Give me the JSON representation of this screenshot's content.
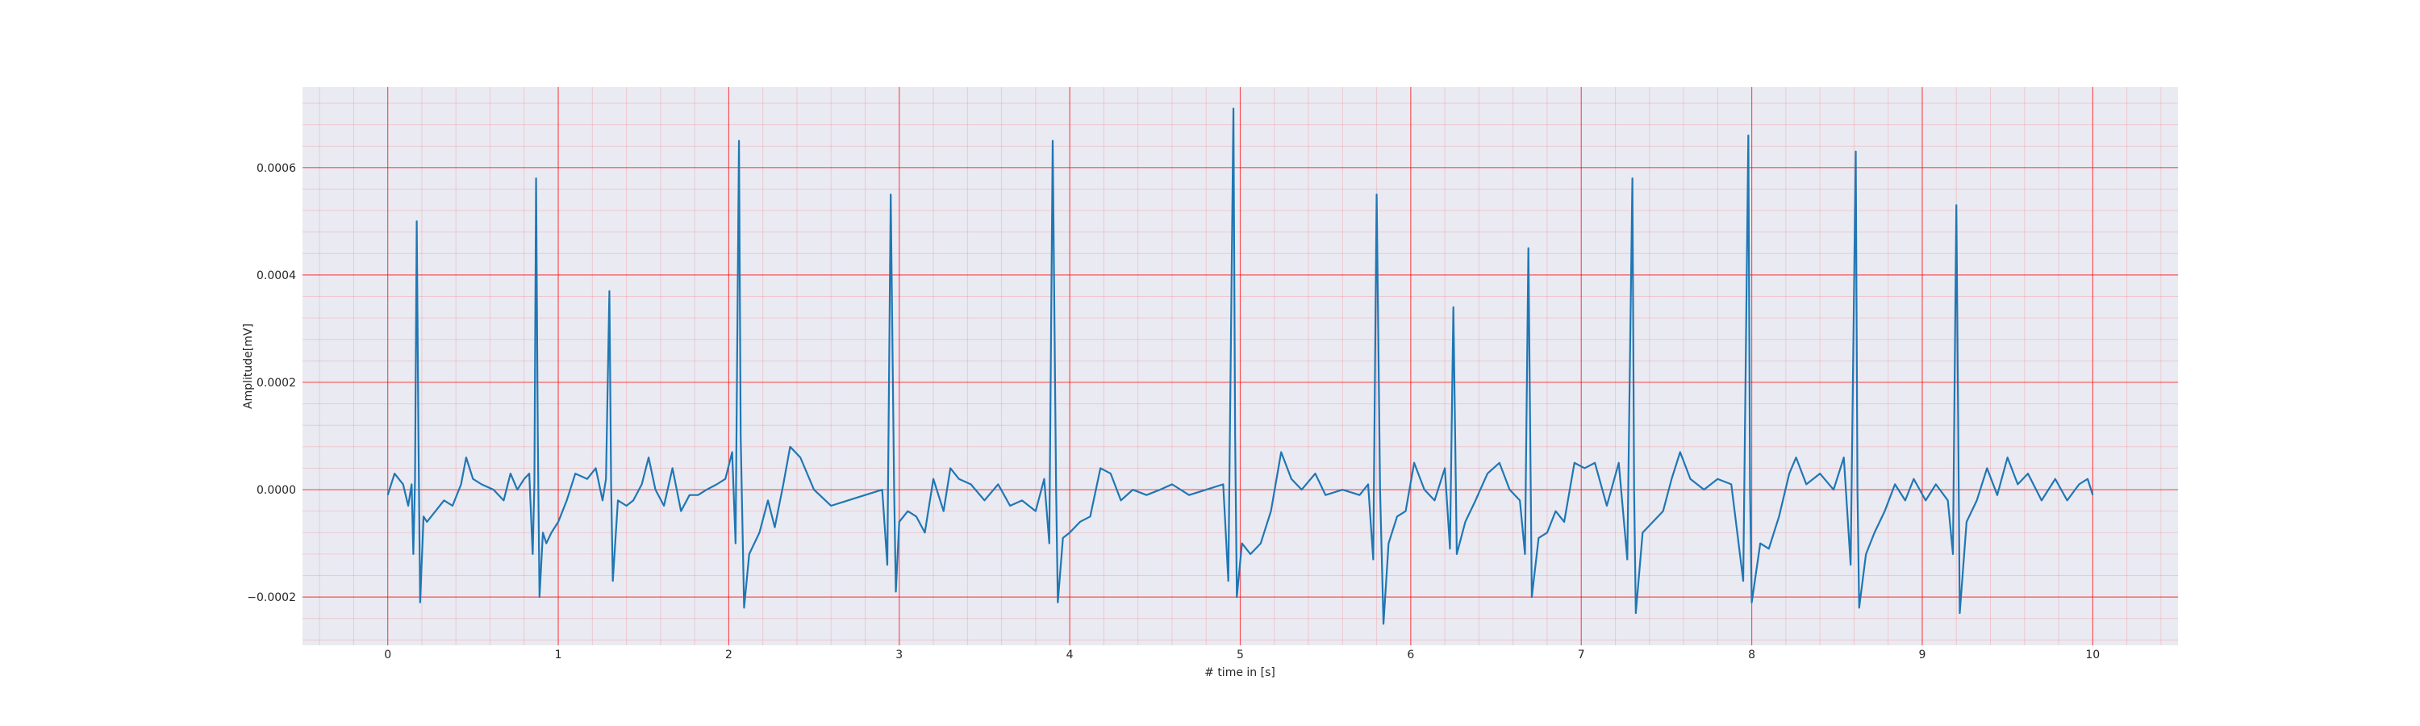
{
  "chart_data": {
    "type": "line",
    "title": "",
    "xlabel": "# time in [s]",
    "ylabel": "Amplitude[mV]",
    "xlim": [
      -0.5,
      10.5
    ],
    "ylim": [
      -0.00029,
      0.00075
    ],
    "grid": true,
    "grid_color": "#ff0000",
    "plot_background": "#eaeaf2",
    "line_color": "#1f77b4",
    "xticks": [
      0,
      1,
      2,
      3,
      4,
      5,
      6,
      7,
      8,
      9,
      10
    ],
    "xtick_labels": [
      "0",
      "1",
      "2",
      "3",
      "4",
      "5",
      "6",
      "7",
      "8",
      "9",
      "10"
    ],
    "yticks": [
      -0.0002,
      0.0,
      0.0002,
      0.0004,
      0.0006
    ],
    "ytick_labels": [
      "−0.0002",
      "0.0000",
      "0.0002",
      "0.0004",
      "0.0006"
    ],
    "series": [
      {
        "values": [
          [
            0.0,
            -1e-05
          ],
          [
            0.04,
            3e-05
          ],
          [
            0.09,
            1e-05
          ],
          [
            0.12,
            -3e-05
          ],
          [
            0.14,
            1e-05
          ],
          [
            0.15,
            -0.00012
          ],
          [
            0.16,
            2e-05
          ],
          [
            0.17,
            0.0005
          ],
          [
            0.18,
            0.0001
          ],
          [
            0.19,
            -0.00021
          ],
          [
            0.21,
            -5e-05
          ],
          [
            0.23,
            -6e-05
          ],
          [
            0.28,
            -4e-05
          ],
          [
            0.33,
            -2e-05
          ],
          [
            0.38,
            -3e-05
          ],
          [
            0.43,
            1e-05
          ],
          [
            0.46,
            6e-05
          ],
          [
            0.5,
            2e-05
          ],
          [
            0.55,
            1e-05
          ],
          [
            0.62,
            0.0
          ],
          [
            0.68,
            -2e-05
          ],
          [
            0.72,
            3e-05
          ],
          [
            0.76,
            0.0
          ],
          [
            0.8,
            2e-05
          ],
          [
            0.83,
            3e-05
          ],
          [
            0.85,
            -0.00012
          ],
          [
            0.86,
            1e-05
          ],
          [
            0.87,
            0.00058
          ],
          [
            0.88,
            0.0001
          ],
          [
            0.89,
            -0.0002
          ],
          [
            0.91,
            -8e-05
          ],
          [
            0.93,
            -0.0001
          ],
          [
            0.96,
            -8e-05
          ],
          [
            1.0,
            -6e-05
          ],
          [
            1.05,
            -2e-05
          ],
          [
            1.1,
            3e-05
          ],
          [
            1.17,
            2e-05
          ],
          [
            1.22,
            4e-05
          ],
          [
            1.26,
            -2e-05
          ],
          [
            1.28,
            2e-05
          ],
          [
            1.3,
            0.00037
          ],
          [
            1.31,
            1e-05
          ],
          [
            1.32,
            -0.00017
          ],
          [
            1.35,
            -2e-05
          ],
          [
            1.4,
            -3e-05
          ],
          [
            1.44,
            -2e-05
          ],
          [
            1.49,
            1e-05
          ],
          [
            1.53,
            6e-05
          ],
          [
            1.57,
            0.0
          ],
          [
            1.62,
            -3e-05
          ],
          [
            1.67,
            4e-05
          ],
          [
            1.72,
            -4e-05
          ],
          [
            1.77,
            -1e-05
          ],
          [
            1.82,
            -1e-05
          ],
          [
            1.87,
            0.0
          ],
          [
            1.93,
            1e-05
          ],
          [
            1.98,
            2e-05
          ],
          [
            2.02,
            7e-05
          ],
          [
            2.04,
            -0.0001
          ],
          [
            2.06,
            0.00065
          ],
          [
            2.07,
            0.0001
          ],
          [
            2.09,
            -0.00022
          ],
          [
            2.12,
            -0.00012
          ],
          [
            2.18,
            -8e-05
          ],
          [
            2.23,
            -2e-05
          ],
          [
            2.27,
            -7e-05
          ],
          [
            2.32,
            1e-05
          ],
          [
            2.36,
            8e-05
          ],
          [
            2.42,
            6e-05
          ],
          [
            2.5,
            0.0
          ],
          [
            2.6,
            -3e-05
          ],
          [
            2.7,
            -2e-05
          ],
          [
            2.8,
            -1e-05
          ],
          [
            2.9,
            0.0
          ],
          [
            2.93,
            -0.00014
          ],
          [
            2.95,
            0.00055
          ],
          [
            2.97,
            0.0
          ],
          [
            2.98,
            -0.00019
          ],
          [
            3.0,
            -6e-05
          ],
          [
            3.05,
            -4e-05
          ],
          [
            3.1,
            -5e-05
          ],
          [
            3.15,
            -8e-05
          ],
          [
            3.2,
            2e-05
          ],
          [
            3.26,
            -4e-05
          ],
          [
            3.3,
            4e-05
          ],
          [
            3.35,
            2e-05
          ],
          [
            3.42,
            1e-05
          ],
          [
            3.5,
            -2e-05
          ],
          [
            3.58,
            1e-05
          ],
          [
            3.65,
            -3e-05
          ],
          [
            3.72,
            -2e-05
          ],
          [
            3.8,
            -4e-05
          ],
          [
            3.85,
            2e-05
          ],
          [
            3.88,
            -0.0001
          ],
          [
            3.9,
            0.00065
          ],
          [
            3.92,
            0.0
          ],
          [
            3.93,
            -0.00021
          ],
          [
            3.96,
            -9e-05
          ],
          [
            4.0,
            -8e-05
          ],
          [
            4.06,
            -6e-05
          ],
          [
            4.12,
            -5e-05
          ],
          [
            4.18,
            4e-05
          ],
          [
            4.24,
            3e-05
          ],
          [
            4.3,
            -2e-05
          ],
          [
            4.37,
            0.0
          ],
          [
            4.45,
            -1e-05
          ],
          [
            4.53,
            0.0
          ],
          [
            4.6,
            1e-05
          ],
          [
            4.7,
            -1e-05
          ],
          [
            4.8,
            0.0
          ],
          [
            4.9,
            1e-05
          ],
          [
            4.93,
            -0.00017
          ],
          [
            4.96,
            0.00071
          ],
          [
            4.97,
            0.0001
          ],
          [
            4.98,
            -0.0002
          ],
          [
            5.01,
            -0.0001
          ],
          [
            5.06,
            -0.00012
          ],
          [
            5.12,
            -0.0001
          ],
          [
            5.18,
            -4e-05
          ],
          [
            5.24,
            7e-05
          ],
          [
            5.3,
            2e-05
          ],
          [
            5.36,
            0.0
          ],
          [
            5.44,
            3e-05
          ],
          [
            5.5,
            -1e-05
          ],
          [
            5.6,
            0.0
          ],
          [
            5.7,
            -1e-05
          ],
          [
            5.75,
            1e-05
          ],
          [
            5.78,
            -0.00013
          ],
          [
            5.8,
            0.00055
          ],
          [
            5.82,
            0.0
          ],
          [
            5.84,
            -0.00025
          ],
          [
            5.87,
            -0.0001
          ],
          [
            5.92,
            -5e-05
          ],
          [
            5.97,
            -4e-05
          ],
          [
            6.02,
            5e-05
          ],
          [
            6.08,
            0.0
          ],
          [
            6.14,
            -2e-05
          ],
          [
            6.2,
            4e-05
          ],
          [
            6.23,
            -0.00011
          ],
          [
            6.25,
            0.00034
          ],
          [
            6.27,
            -0.00012
          ],
          [
            6.32,
            -6e-05
          ],
          [
            6.38,
            -2e-05
          ],
          [
            6.45,
            3e-05
          ],
          [
            6.52,
            5e-05
          ],
          [
            6.58,
            0.0
          ],
          [
            6.64,
            -2e-05
          ],
          [
            6.67,
            -0.00012
          ],
          [
            6.69,
            0.00045
          ],
          [
            6.71,
            -0.0002
          ],
          [
            6.75,
            -9e-05
          ],
          [
            6.8,
            -8e-05
          ],
          [
            6.85,
            -4e-05
          ],
          [
            6.9,
            -6e-05
          ],
          [
            6.96,
            5e-05
          ],
          [
            7.02,
            4e-05
          ],
          [
            7.08,
            5e-05
          ],
          [
            7.15,
            -3e-05
          ],
          [
            7.22,
            5e-05
          ],
          [
            7.27,
            -0.00013
          ],
          [
            7.3,
            0.00058
          ],
          [
            7.31,
            0.0
          ],
          [
            7.32,
            -0.00023
          ],
          [
            7.36,
            -8e-05
          ],
          [
            7.42,
            -6e-05
          ],
          [
            7.48,
            -4e-05
          ],
          [
            7.53,
            2e-05
          ],
          [
            7.58,
            7e-05
          ],
          [
            7.64,
            2e-05
          ],
          [
            7.72,
            0.0
          ],
          [
            7.8,
            2e-05
          ],
          [
            7.88,
            1e-05
          ],
          [
            7.95,
            -0.00017
          ],
          [
            7.98,
            0.00066
          ],
          [
            7.99,
            0.0
          ],
          [
            8.0,
            -0.00021
          ],
          [
            8.05,
            -0.0001
          ],
          [
            8.1,
            -0.00011
          ],
          [
            8.16,
            -5e-05
          ],
          [
            8.22,
            3e-05
          ],
          [
            8.26,
            6e-05
          ],
          [
            8.32,
            1e-05
          ],
          [
            8.4,
            3e-05
          ],
          [
            8.48,
            0.0
          ],
          [
            8.54,
            6e-05
          ],
          [
            8.58,
            -0.00014
          ],
          [
            8.61,
            0.00063
          ],
          [
            8.62,
            0.0
          ],
          [
            8.63,
            -0.00022
          ],
          [
            8.67,
            -0.00012
          ],
          [
            8.72,
            -8e-05
          ],
          [
            8.78,
            -4e-05
          ],
          [
            8.84,
            1e-05
          ],
          [
            8.9,
            -2e-05
          ],
          [
            8.95,
            2e-05
          ],
          [
            9.02,
            -2e-05
          ],
          [
            9.08,
            1e-05
          ],
          [
            9.15,
            -2e-05
          ],
          [
            9.18,
            -0.00012
          ],
          [
            9.2,
            0.00053
          ],
          [
            9.22,
            -0.00023
          ],
          [
            9.26,
            -6e-05
          ],
          [
            9.32,
            -2e-05
          ],
          [
            9.38,
            4e-05
          ],
          [
            9.44,
            -1e-05
          ],
          [
            9.5,
            6e-05
          ],
          [
            9.56,
            1e-05
          ],
          [
            9.62,
            3e-05
          ],
          [
            9.7,
            -2e-05
          ],
          [
            9.78,
            2e-05
          ],
          [
            9.85,
            -2e-05
          ],
          [
            9.92,
            1e-05
          ],
          [
            9.97,
            2e-05
          ],
          [
            10.0,
            -1e-05
          ]
        ]
      }
    ]
  }
}
